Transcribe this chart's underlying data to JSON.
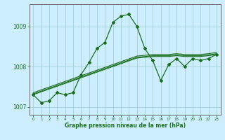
{
  "x": [
    0,
    1,
    2,
    3,
    4,
    5,
    6,
    7,
    8,
    9,
    10,
    11,
    12,
    13,
    14,
    15,
    16,
    17,
    18,
    19,
    20,
    21,
    22,
    23
  ],
  "main_line": [
    1007.3,
    1007.1,
    1007.15,
    1007.35,
    1007.3,
    1007.35,
    1007.8,
    1008.1,
    1008.45,
    1008.6,
    1009.1,
    1009.25,
    1009.3,
    1009.0,
    1008.45,
    1008.15,
    1007.65,
    1008.05,
    1008.2,
    1008.0,
    1008.2,
    1008.15,
    1008.2,
    1008.3
  ],
  "reg_line1": [
    1007.35,
    1007.42,
    1007.49,
    1007.56,
    1007.63,
    1007.7,
    1007.77,
    1007.84,
    1007.91,
    1007.98,
    1008.05,
    1008.12,
    1008.19,
    1008.26,
    1008.28,
    1008.3,
    1008.3,
    1008.3,
    1008.32,
    1008.3,
    1008.3,
    1008.3,
    1008.32,
    1008.35
  ],
  "reg_line2": [
    1007.3,
    1007.37,
    1007.44,
    1007.51,
    1007.58,
    1007.65,
    1007.72,
    1007.79,
    1007.86,
    1007.93,
    1008.0,
    1008.07,
    1008.14,
    1008.21,
    1008.23,
    1008.25,
    1008.25,
    1008.25,
    1008.27,
    1008.25,
    1008.25,
    1008.25,
    1008.27,
    1008.3
  ],
  "reg_line3": [
    1007.32,
    1007.39,
    1007.46,
    1007.53,
    1007.6,
    1007.67,
    1007.74,
    1007.81,
    1007.88,
    1007.95,
    1008.02,
    1008.09,
    1008.16,
    1008.23,
    1008.25,
    1008.27,
    1008.27,
    1008.27,
    1008.29,
    1008.27,
    1008.27,
    1008.27,
    1008.29,
    1008.32
  ],
  "line_color": "#1a6e1a",
  "bg_color": "#cceeff",
  "grid_color": "#99cccc",
  "xlabel": "Graphe pression niveau de la mer (hPa)",
  "yticks": [
    1007,
    1008,
    1009
  ],
  "ylim": [
    1006.8,
    1009.55
  ],
  "xlim": [
    -0.5,
    23.5
  ]
}
